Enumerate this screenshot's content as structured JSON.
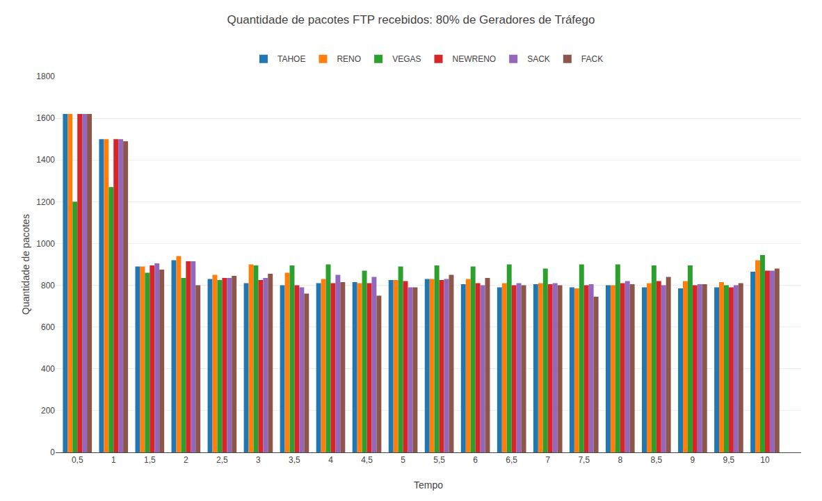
{
  "chart_data": {
    "type": "bar",
    "title": "Quantidade de pacotes FTP recebidos: 80% de Geradores de Tráfego",
    "xlabel": "Tempo",
    "ylabel": "Quantidade de pacotes",
    "x": [
      0.5,
      1.0,
      1.5,
      2.0,
      2.5,
      3.0,
      3.5,
      4.0,
      4.5,
      5.0,
      5.5,
      6.0,
      6.5,
      7.0,
      7.5,
      8.0,
      8.5,
      9.0,
      9.5,
      10.0
    ],
    "xlim": [
      0.2,
      10.5
    ],
    "xticks": [
      {
        "value": 0.5,
        "label": "0,5"
      },
      1,
      {
        "value": 1.5,
        "label": "1,5"
      },
      2,
      {
        "value": 2.5,
        "label": "2,5"
      },
      3,
      {
        "value": 3.5,
        "label": "3,5"
      },
      4,
      {
        "value": 4.5,
        "label": "4,5"
      },
      5,
      {
        "value": 5.5,
        "label": "5,5"
      },
      6,
      {
        "value": 6.5,
        "label": "6,5"
      },
      7,
      {
        "value": 7.5,
        "label": "7,5"
      },
      8,
      {
        "value": 8.5,
        "label": "8,5"
      },
      9,
      {
        "value": 9.5,
        "label": "9,5"
      },
      10
    ],
    "ylim": [
      0,
      1800
    ],
    "yticks": [
      0,
      200,
      400,
      600,
      800,
      1000,
      1200,
      1400,
      1600,
      1800
    ],
    "grid": true,
    "legend": "top",
    "series": [
      {
        "name": "TAHOE",
        "values": [
          1620,
          1500,
          890,
          920,
          830,
          810,
          800,
          810,
          815,
          825,
          830,
          805,
          790,
          805,
          790,
          800,
          790,
          785,
          790,
          865
        ]
      },
      {
        "name": "RENO",
        "values": [
          1620,
          1500,
          890,
          940,
          850,
          900,
          860,
          830,
          810,
          825,
          830,
          830,
          810,
          810,
          785,
          800,
          810,
          820,
          815,
          920
        ]
      },
      {
        "name": "VEGAS",
        "values": [
          1200,
          1270,
          860,
          835,
          825,
          895,
          895,
          900,
          870,
          890,
          895,
          890,
          900,
          880,
          900,
          900,
          895,
          895,
          800,
          945
        ]
      },
      {
        "name": "NEWRENO",
        "values": [
          1620,
          1500,
          895,
          915,
          835,
          825,
          800,
          810,
          810,
          820,
          825,
          810,
          800,
          805,
          800,
          810,
          820,
          800,
          790,
          870
        ]
      },
      {
        "name": "SACK",
        "values": [
          1620,
          1500,
          905,
          915,
          835,
          835,
          790,
          850,
          840,
          790,
          830,
          800,
          810,
          810,
          805,
          820,
          800,
          805,
          800,
          870
        ]
      },
      {
        "name": "FACK",
        "values": [
          1620,
          1490,
          875,
          800,
          845,
          855,
          760,
          815,
          750,
          790,
          850,
          835,
          800,
          800,
          745,
          805,
          840,
          805,
          810,
          880
        ]
      }
    ]
  }
}
